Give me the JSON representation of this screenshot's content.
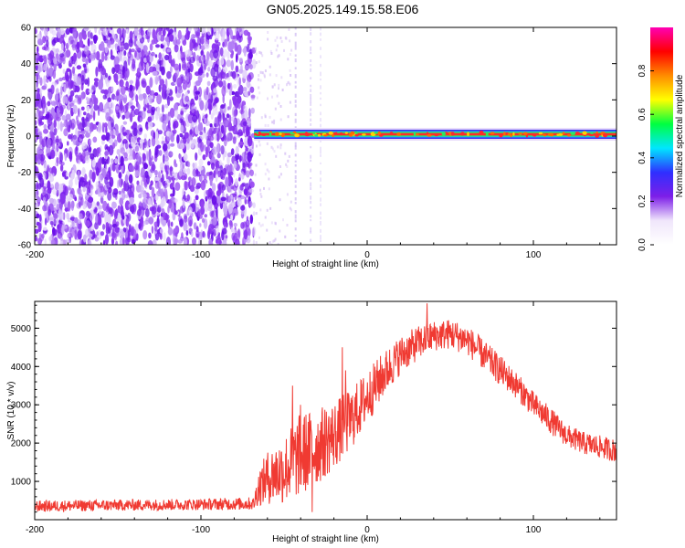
{
  "title": "GN05.2025.149.15.58.E06",
  "colors": {
    "snr_line": "#f03a32",
    "spectro_purple": "#7d22ee",
    "spectro_light": "#d9c4f6"
  },
  "chart_data": [
    {
      "type": "heatmap",
      "name": "spectrogram",
      "xlabel": "Height of straight line (km)",
      "ylabel": "Frequency (Hz)",
      "xlim": [
        -200,
        150
      ],
      "ylim": [
        -60,
        60
      ],
      "xticks": [
        -200,
        -100,
        0,
        100
      ],
      "xtick_labels": [
        "-200",
        "-100",
        "0",
        "100"
      ],
      "yticks": [
        -60,
        -40,
        -20,
        0,
        20,
        40,
        60
      ],
      "ytick_labels": [
        "-60",
        "-40",
        "-20",
        "0",
        "20",
        "40",
        "60"
      ],
      "noise_region_x": [
        -200,
        -68
      ],
      "tone": {
        "x_start": -68,
        "x_end": 150,
        "frequency_hz": 1,
        "amplitude": 0.95
      },
      "colorbar": {
        "label": "Normalized spectral amplitude",
        "range": [
          0,
          1
        ],
        "ticks": [
          0.0,
          0.2,
          0.4,
          0.6,
          0.8
        ],
        "tick_labels": [
          "0.0",
          "0.2",
          "0.4",
          "0.6",
          "0.8"
        ],
        "colors": [
          "#ffffff",
          "#f0e6fb",
          "#7d1fe8",
          "#2f2fff",
          "#00e6ff",
          "#00ff40",
          "#ffff00",
          "#ff8c00",
          "#ff0000",
          "#ff00b4"
        ]
      }
    },
    {
      "type": "line",
      "name": "snr",
      "xlabel": "Height of straight line (km)",
      "ylabel": "SNR (10 * v/v)",
      "xlim": [
        -200,
        150
      ],
      "ylim": [
        0,
        5700
      ],
      "xticks": [
        -200,
        -100,
        0,
        100
      ],
      "xtick_labels": [
        "-200",
        "-100",
        "0",
        "100"
      ],
      "yticks": [
        1000,
        2000,
        3000,
        4000,
        5000
      ],
      "ytick_labels": [
        "1000",
        "2000",
        "3000",
        "4000",
        "5000"
      ],
      "envelope": {
        "x": [
          -200,
          -150,
          -100,
          -68,
          -66,
          -60,
          -50,
          -45,
          -40,
          -30,
          -20,
          -10,
          0,
          10,
          20,
          30,
          40,
          50,
          60,
          70,
          80,
          90,
          100,
          110,
          120,
          130,
          140,
          150
        ],
        "mean": [
          350,
          380,
          400,
          420,
          800,
          1100,
          1300,
          1500,
          1700,
          1900,
          2200,
          2600,
          3200,
          3800,
          4300,
          4600,
          4800,
          4850,
          4700,
          4300,
          3900,
          3500,
          3000,
          2600,
          2200,
          2000,
          1900,
          1800
        ],
        "spread": [
          150,
          150,
          150,
          170,
          450,
          700,
          900,
          1000,
          1100,
          1000,
          900,
          800,
          700,
          600,
          500,
          450,
          400,
          400,
          400,
          400,
          400,
          350,
          350,
          350,
          300,
          300,
          300,
          300
        ]
      },
      "peaks": [
        {
          "x": -40,
          "y": 3000
        },
        {
          "x": -33,
          "y": 200
        },
        {
          "x": -15,
          "y": 4500
        },
        {
          "x": -13,
          "y": 3900
        },
        {
          "x": -45,
          "y": 3500
        },
        {
          "x": 36,
          "y": 5650
        }
      ]
    }
  ]
}
